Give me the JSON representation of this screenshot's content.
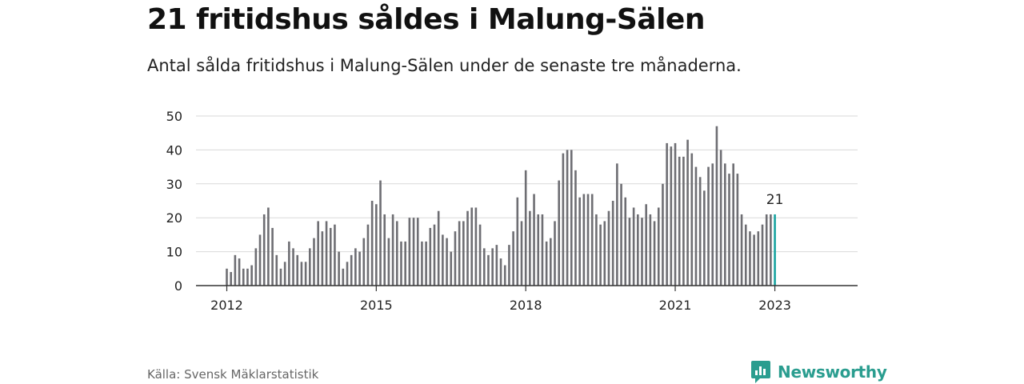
{
  "header": {
    "title": "21 fritidshus såldes i Malung-Sälen",
    "subtitle": "Antal sålda fritidshus i Malung-Sälen under de senaste tre månaderna."
  },
  "footer": {
    "source": "Källa: Svensk Mäklarstatistik",
    "brand": "Newsworthy"
  },
  "colors": {
    "bar": "#6e6e73",
    "highlight": "#17a3a0",
    "grid": "#d9d9d9",
    "axis": "#333333",
    "brand": "#2a9d8f"
  },
  "chart_data": {
    "type": "bar",
    "title": "21 fritidshus såldes i Malung-Sälen",
    "xlabel": "",
    "ylabel": "",
    "ylim": [
      0,
      50
    ],
    "yticks": [
      0,
      10,
      20,
      30,
      40,
      50
    ],
    "xticks": [
      "2012",
      "2015",
      "2018",
      "2021",
      "2023"
    ],
    "grid": true,
    "annotation": {
      "label": "21",
      "target": "last"
    },
    "values": [
      5,
      4,
      9,
      8,
      5,
      5,
      6,
      11,
      15,
      21,
      23,
      17,
      9,
      5,
      7,
      13,
      11,
      9,
      7,
      7,
      11,
      14,
      19,
      16,
      19,
      17,
      18,
      10,
      5,
      7,
      9,
      11,
      10,
      14,
      18,
      25,
      24,
      31,
      21,
      14,
      21,
      19,
      13,
      13,
      20,
      20,
      20,
      13,
      13,
      17,
      18,
      22,
      15,
      14,
      10,
      16,
      19,
      19,
      22,
      23,
      23,
      18,
      11,
      9,
      11,
      12,
      8,
      6,
      12,
      16,
      26,
      19,
      34,
      22,
      27,
      21,
      21,
      13,
      14,
      19,
      31,
      39,
      40,
      40,
      34,
      26,
      27,
      27,
      27,
      21,
      18,
      19,
      22,
      25,
      36,
      30,
      26,
      20,
      23,
      21,
      20,
      24,
      21,
      19,
      23,
      30,
      42,
      41,
      42,
      38,
      38,
      43,
      39,
      35,
      32,
      28,
      35,
      36,
      47,
      40,
      36,
      33,
      36,
      33,
      21,
      18,
      16,
      15,
      16,
      18,
      21,
      21,
      21
    ]
  }
}
